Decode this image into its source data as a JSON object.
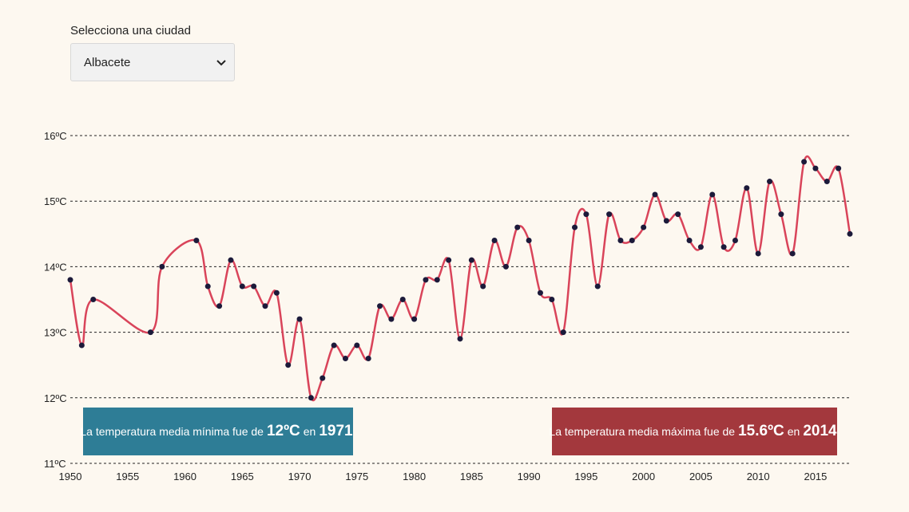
{
  "selector": {
    "label": "Selecciona una ciudad",
    "value": "Albacete"
  },
  "callouts": {
    "min": {
      "prefix": "La temperatura media mínima fue de",
      "value": "12ºC",
      "connector": "en",
      "year": "1971"
    },
    "max": {
      "prefix": "La temperatura media máxima fue de",
      "value": "15.6ºC",
      "connector": "en",
      "year": "2014"
    }
  },
  "colors": {
    "line": "#d9445a",
    "point": "#1c1a3a",
    "min_box": "#2e7d96",
    "max_box": "#a3383d"
  },
  "chart_data": {
    "type": "line",
    "xlim": [
      1950,
      2018
    ],
    "ylim": [
      11,
      16
    ],
    "x_ticks": [
      1950,
      1955,
      1960,
      1965,
      1970,
      1975,
      1980,
      1985,
      1990,
      1995,
      2000,
      2005,
      2010,
      2015
    ],
    "y_ticks": [
      11,
      12,
      13,
      14,
      15,
      16
    ],
    "y_tick_labels": [
      "11ºC",
      "12ºC",
      "13ºC",
      "14ºC",
      "15ºC",
      "16ºC"
    ],
    "grid": "horizontal dashed",
    "series": [
      {
        "points": [
          [
            1950,
            13.8
          ],
          [
            1951,
            12.8
          ],
          [
            1952,
            13.5
          ],
          [
            1957,
            13.0
          ],
          [
            1958,
            14.0
          ],
          [
            1961,
            14.4
          ],
          [
            1962,
            13.7
          ],
          [
            1963,
            13.4
          ],
          [
            1964,
            14.1
          ],
          [
            1965,
            13.7
          ],
          [
            1966,
            13.7
          ],
          [
            1967,
            13.4
          ],
          [
            1968,
            13.6
          ],
          [
            1969,
            12.5
          ],
          [
            1970,
            13.2
          ],
          [
            1971,
            12.0
          ],
          [
            1972,
            12.3
          ],
          [
            1973,
            12.8
          ],
          [
            1974,
            12.6
          ],
          [
            1975,
            12.8
          ],
          [
            1976,
            12.6
          ],
          [
            1977,
            13.4
          ],
          [
            1978,
            13.2
          ],
          [
            1979,
            13.5
          ],
          [
            1980,
            13.2
          ],
          [
            1981,
            13.8
          ],
          [
            1982,
            13.8
          ],
          [
            1983,
            14.1
          ],
          [
            1984,
            12.9
          ],
          [
            1985,
            14.1
          ],
          [
            1986,
            13.7
          ],
          [
            1987,
            14.4
          ],
          [
            1988,
            14.0
          ],
          [
            1989,
            14.6
          ],
          [
            1990,
            14.4
          ],
          [
            1991,
            13.6
          ],
          [
            1992,
            13.5
          ],
          [
            1993,
            13.0
          ],
          [
            1994,
            14.6
          ],
          [
            1995,
            14.8
          ],
          [
            1996,
            13.7
          ],
          [
            1997,
            14.8
          ],
          [
            1998,
            14.4
          ],
          [
            1999,
            14.4
          ],
          [
            2000,
            14.6
          ],
          [
            2001,
            15.1
          ],
          [
            2002,
            14.7
          ],
          [
            2003,
            14.8
          ],
          [
            2004,
            14.4
          ],
          [
            2005,
            14.3
          ],
          [
            2006,
            15.1
          ],
          [
            2007,
            14.3
          ],
          [
            2008,
            14.4
          ],
          [
            2009,
            15.2
          ],
          [
            2010,
            14.2
          ],
          [
            2011,
            15.3
          ],
          [
            2012,
            14.8
          ],
          [
            2013,
            14.2
          ],
          [
            2014,
            15.6
          ],
          [
            2015,
            15.5
          ],
          [
            2016,
            15.3
          ],
          [
            2017,
            15.5
          ],
          [
            2018,
            14.5
          ]
        ]
      }
    ]
  }
}
